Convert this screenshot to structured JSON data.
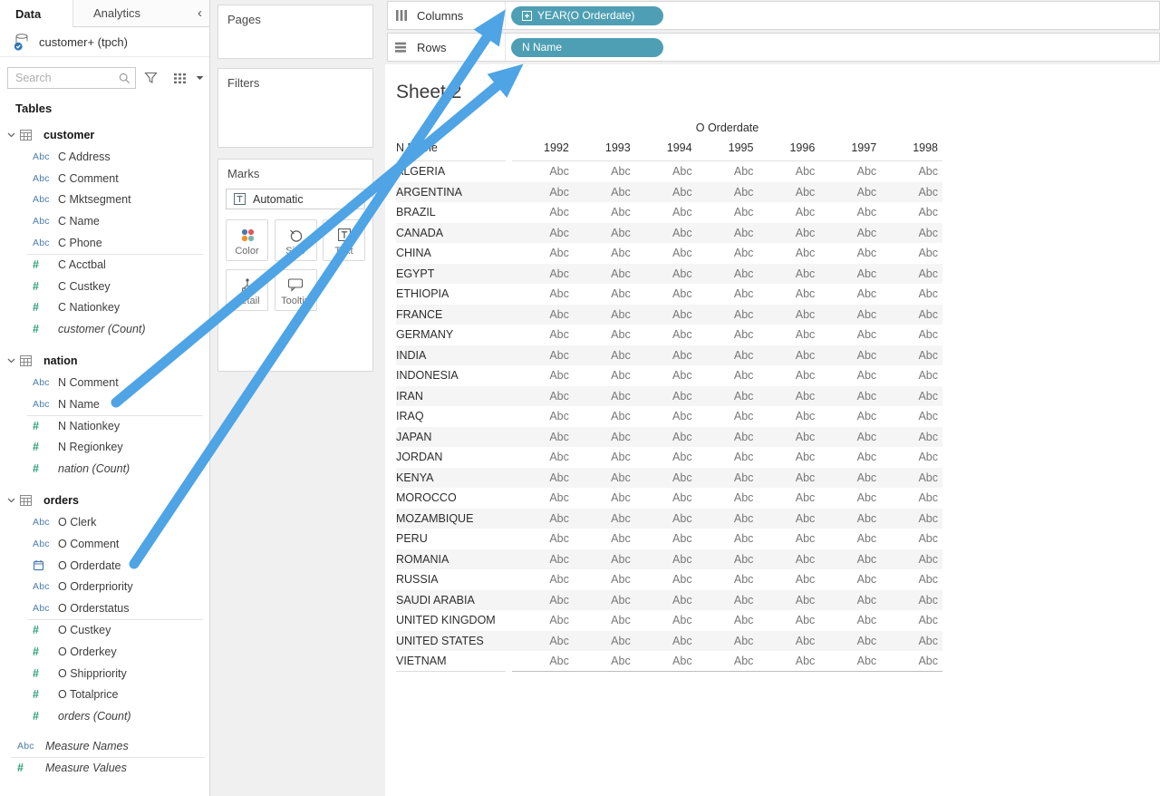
{
  "colors": {
    "pill_teal": "#4e9fb4",
    "arrow_blue": "#4ea4e4",
    "dimension_blue": "#4a7dad",
    "measure_green": "#2a9d77"
  },
  "data_pane": {
    "tabs": [
      {
        "label": "Data"
      },
      {
        "label": "Analytics"
      }
    ],
    "collapse_label": "‹",
    "connection": "customer+ (tpch)",
    "search_placeholder": "Search",
    "tables_label": "Tables",
    "icon_text": {
      "abc": "Abc",
      "num": "#"
    },
    "groups": [
      {
        "name": "customer",
        "fields": [
          {
            "icon": "abc",
            "label": "C Address"
          },
          {
            "icon": "abc",
            "label": "C Comment"
          },
          {
            "icon": "abc",
            "label": "C Mktsegment"
          },
          {
            "icon": "abc",
            "label": "C Name"
          },
          {
            "icon": "abc",
            "label": "C Phone"
          },
          {
            "icon": "num",
            "label": "C Acctbal",
            "divider": true
          },
          {
            "icon": "num",
            "label": "C Custkey"
          },
          {
            "icon": "num",
            "label": "C Nationkey"
          },
          {
            "icon": "num",
            "label": "customer (Count)",
            "italic": true
          }
        ]
      },
      {
        "name": "nation",
        "fields": [
          {
            "icon": "abc",
            "label": "N Comment"
          },
          {
            "icon": "abc",
            "label": "N Name"
          },
          {
            "icon": "num",
            "label": "N Nationkey",
            "divider": true
          },
          {
            "icon": "num",
            "label": "N Regionkey"
          },
          {
            "icon": "num",
            "label": "nation (Count)",
            "italic": true
          }
        ]
      },
      {
        "name": "orders",
        "fields": [
          {
            "icon": "abc",
            "label": "O Clerk"
          },
          {
            "icon": "abc",
            "label": "O Comment"
          },
          {
            "icon": "date",
            "label": "O Orderdate"
          },
          {
            "icon": "abc",
            "label": "O Orderpriority"
          },
          {
            "icon": "abc",
            "label": "O Orderstatus"
          },
          {
            "icon": "num",
            "label": "O Custkey",
            "divider": true
          },
          {
            "icon": "num",
            "label": "O Orderkey"
          },
          {
            "icon": "num",
            "label": "O Shippriority"
          },
          {
            "icon": "num",
            "label": "O Totalprice"
          },
          {
            "icon": "num",
            "label": "orders (Count)",
            "italic": true
          }
        ]
      }
    ],
    "measure_fields": [
      {
        "icon": "abc",
        "label": "Measure Names",
        "italic": true
      },
      {
        "icon": "num",
        "label": "Measure Values",
        "italic": true,
        "divider": true
      }
    ]
  },
  "cards": {
    "pages_label": "Pages",
    "filters_label": "Filters",
    "marks_label": "Marks",
    "mark_type": "Automatic",
    "buttons": [
      {
        "label": "Color"
      },
      {
        "label": "Size"
      },
      {
        "label": "Text"
      },
      {
        "label": "Detail"
      },
      {
        "label": "Tooltip"
      }
    ]
  },
  "shelves": {
    "columns_label": "Columns",
    "rows_label": "Rows",
    "columns_pill": "YEAR(O Orderdate)",
    "rows_pill": "N Name"
  },
  "sheet": {
    "title": "Sheet 2",
    "table": {
      "column_field_label": "O Orderdate",
      "row_field_label": "N Name",
      "years": [
        "1992",
        "1993",
        "1994",
        "1995",
        "1996",
        "1997",
        "1998"
      ],
      "countries": [
        "ALGERIA",
        "ARGENTINA",
        "BRAZIL",
        "CANADA",
        "CHINA",
        "EGYPT",
        "ETHIOPIA",
        "FRANCE",
        "GERMANY",
        "INDIA",
        "INDONESIA",
        "IRAN",
        "IRAQ",
        "JAPAN",
        "JORDAN",
        "KENYA",
        "MOROCCO",
        "MOZAMBIQUE",
        "PERU",
        "ROMANIA",
        "RUSSIA",
        "SAUDI ARABIA",
        "UNITED KINGDOM",
        "UNITED STATES",
        "VIETNAM"
      ],
      "cell_placeholder": "Abc"
    }
  }
}
